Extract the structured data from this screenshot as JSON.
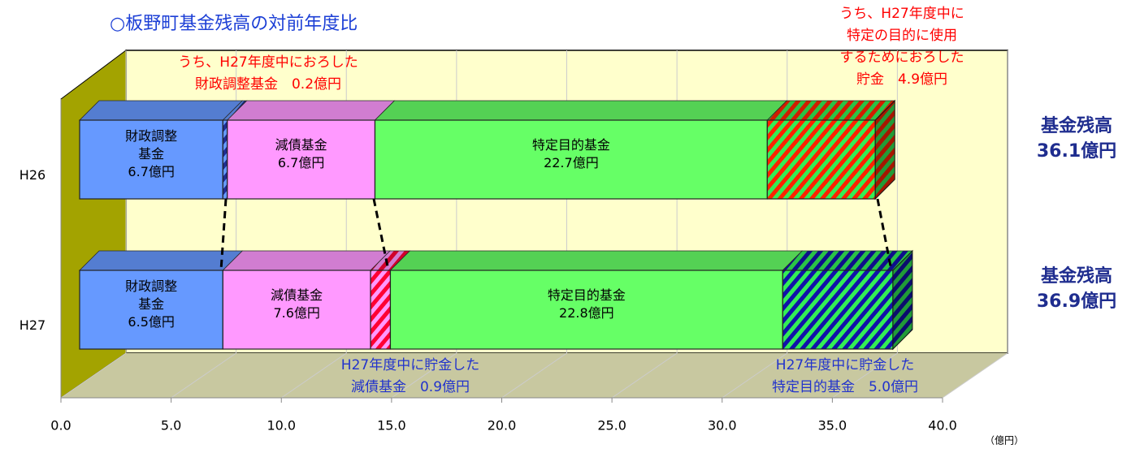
{
  "chart_data": {
    "type": "stacked-bar-3d",
    "title": "○板野町基金残高の対前年度比",
    "x_unit": "（億円）",
    "categories": [
      "H26",
      "H27"
    ],
    "xlim": [
      0,
      40
    ],
    "xticks": [
      {
        "value": 0,
        "label": "0.0"
      },
      {
        "value": 5,
        "label": "5.0"
      },
      {
        "value": 10,
        "label": "10.0"
      },
      {
        "value": 15,
        "label": "15.0"
      },
      {
        "value": 20,
        "label": "20.0"
      },
      {
        "value": 25,
        "label": "25.0"
      },
      {
        "value": 30,
        "label": "30.0"
      },
      {
        "value": 35,
        "label": "35.0"
      },
      {
        "value": 40,
        "label": "40.0"
      }
    ],
    "grid": true,
    "series": [
      {
        "color": "#6699ff",
        "values": [
          6.5,
          6.5
        ],
        "labels": [
          [
            "財政調整",
            "基金",
            "6.7億円"
          ],
          [
            "財政調整",
            "基金",
            "6.5億円"
          ]
        ]
      },
      {
        "color": "#6699ff",
        "hatch_color": "#1f2d8f",
        "values": [
          0.2,
          0
        ]
      },
      {
        "color": "#ff99ff",
        "values": [
          6.7,
          6.7
        ],
        "labels": [
          [
            "減債基金",
            "6.7億円"
          ],
          [
            "減債基金",
            "7.6億円"
          ]
        ]
      },
      {
        "color": "#ff99ff",
        "hatch_color": "#ff0033",
        "values": [
          0,
          0.9
        ]
      },
      {
        "color": "#66ff66",
        "values": [
          17.8,
          17.8
        ],
        "labels": [
          [
            "特定目的基金",
            "22.7億円"
          ],
          [
            "特定目的基金",
            "22.8億円"
          ]
        ]
      },
      {
        "color": "#33ee55",
        "hatch_color": "#ff2200",
        "values": [
          4.9,
          0
        ]
      },
      {
        "color": "#33ee55",
        "hatch_color": "#1111aa",
        "values": [
          0,
          5.0
        ]
      }
    ],
    "annotations": [
      {
        "color": "#ff0000",
        "lines": [
          "うち、H27年度中におろした",
          "財政調整基金　0.2億円"
        ]
      },
      {
        "color": "#ff0000",
        "lines": [
          "うち、H27年度中に",
          "特定の目的に使用",
          "するためにおろした",
          "貯金　4.9億円"
        ]
      },
      {
        "color": "#2233cc",
        "lines": [
          "H27年度中に貯金した",
          "減債基金　0.9億円"
        ]
      },
      {
        "color": "#2233cc",
        "lines": [
          "H27年度中に貯金した",
          "特定目的基金　5.0億円"
        ]
      }
    ],
    "totals": [
      [
        "基金残高",
        "36.1億円"
      ],
      [
        "基金残高",
        "36.9億円"
      ]
    ]
  }
}
